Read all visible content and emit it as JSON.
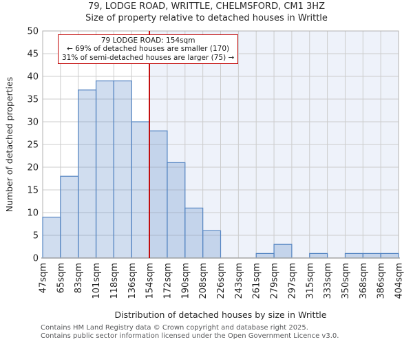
{
  "chart_data": {
    "type": "bar",
    "title": "79, LODGE ROAD, WRITTLE, CHELMSFORD, CM1 3HZ",
    "subtitle": "Size of property relative to detached houses in Writtle",
    "xlabel": "Distribution of detached houses by size in Writtle",
    "ylabel": "Number of detached properties",
    "categories": [
      "47sqm",
      "65sqm",
      "83sqm",
      "101sqm",
      "118sqm",
      "136sqm",
      "154sqm",
      "172sqm",
      "190sqm",
      "208sqm",
      "226sqm",
      "243sqm",
      "261sqm",
      "279sqm",
      "297sqm",
      "315sqm",
      "333sqm",
      "350sqm",
      "368sqm",
      "386sqm",
      "404sqm"
    ],
    "values": [
      9,
      18,
      37,
      39,
      39,
      30,
      28,
      21,
      11,
      6,
      0,
      0,
      1,
      3,
      0,
      1,
      0,
      1,
      1,
      1
    ],
    "ylim": [
      0,
      50
    ],
    "ytick_step": 5,
    "grid": true,
    "legend": false,
    "marker": {
      "label": "154sqm",
      "tick_index": 6
    }
  },
  "annotation": {
    "line1": "79 LODGE ROAD: 154sqm",
    "line2": "← 69% of detached houses are smaller (170)",
    "line3": "31% of semi-detached houses are larger (75) →"
  },
  "footer": {
    "line1": "Contains HM Land Registry data © Crown copyright and database right 2025.",
    "line2": "Contains public sector information licensed under the Open Government Licence v3.0."
  },
  "colors": {
    "bar_fill": "rgba(100,143,203,0.30)",
    "bar_stroke": "#5585c2",
    "marker_line": "#c00000",
    "shade": "#eef2fa",
    "grid": "#cccccc",
    "frame": "#b0b0b0",
    "bottom_spine": "#a6a6a6",
    "text": "#262626",
    "footer_text": "#58595b"
  }
}
